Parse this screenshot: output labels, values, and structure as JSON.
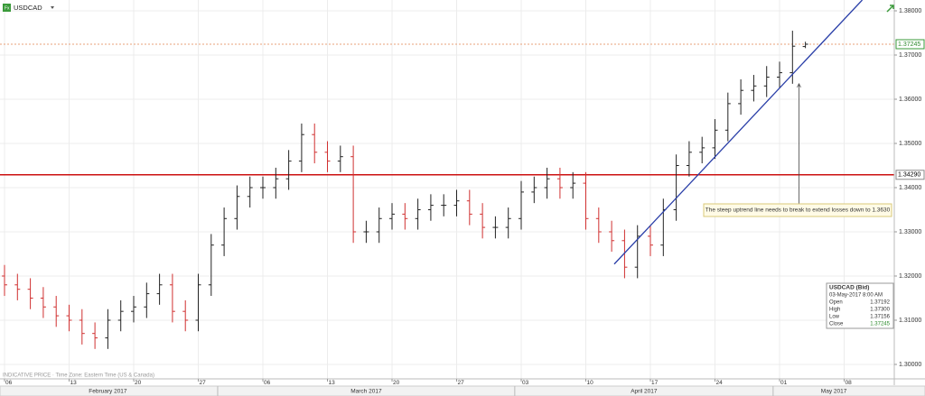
{
  "chart_data": {
    "type": "ohlc",
    "symbol": "USDCAD",
    "footnote": "INDICATIVE PRICE · Time Zone: Eastern Time (US & Canada)",
    "x": [
      0,
      1,
      2,
      3,
      4,
      5,
      6,
      7,
      8,
      9,
      10,
      11,
      12,
      13,
      14,
      15,
      16,
      17,
      18,
      19,
      20,
      21,
      22,
      23,
      24,
      25,
      26,
      27,
      28,
      29,
      30,
      31,
      32,
      33,
      34,
      35,
      36,
      37,
      38,
      39,
      40,
      41,
      42,
      43,
      44,
      45,
      46,
      47,
      48,
      49,
      50,
      51,
      52,
      53,
      54,
      55,
      56,
      57,
      58,
      59,
      60,
      61,
      62
    ],
    "open": [
      1.32,
      1.318,
      1.317,
      1.315,
      1.313,
      1.311,
      1.31,
      1.307,
      1.306,
      1.31,
      1.312,
      1.313,
      1.316,
      1.318,
      1.312,
      1.31,
      1.318,
      1.327,
      1.333,
      1.338,
      1.34,
      1.34,
      1.342,
      1.346,
      1.352,
      1.348,
      1.346,
      1.347,
      1.33,
      1.33,
      1.333,
      1.334,
      1.333,
      1.335,
      1.336,
      1.336,
      1.337,
      1.334,
      1.331,
      1.331,
      1.333,
      1.339,
      1.34,
      1.342,
      1.34,
      1.341,
      1.333,
      1.33,
      1.328,
      1.322,
      1.329,
      1.327,
      1.335,
      1.345,
      1.348,
      1.349,
      1.353,
      1.359,
      1.362,
      1.363,
      1.365,
      1.366,
      1.37192
    ],
    "high": [
      1.3225,
      1.3205,
      1.3195,
      1.3175,
      1.3155,
      1.3135,
      1.3125,
      1.3095,
      1.3125,
      1.3145,
      1.3155,
      1.3185,
      1.3205,
      1.3205,
      1.3145,
      1.3205,
      1.3295,
      1.3355,
      1.3405,
      1.3425,
      1.3425,
      1.3445,
      1.3485,
      1.3545,
      1.3545,
      1.3505,
      1.3495,
      1.3495,
      1.3325,
      1.3355,
      1.3365,
      1.3365,
      1.3375,
      1.3385,
      1.3385,
      1.3395,
      1.3395,
      1.3365,
      1.3335,
      1.3355,
      1.3415,
      1.3425,
      1.3445,
      1.3445,
      1.3435,
      1.3435,
      1.3355,
      1.3325,
      1.3305,
      1.3315,
      1.3315,
      1.3375,
      1.3475,
      1.3505,
      1.3515,
      1.3555,
      1.3615,
      1.3645,
      1.3655,
      1.3675,
      1.3685,
      1.3755,
      1.373
    ],
    "low": [
      1.3155,
      1.3145,
      1.3125,
      1.3105,
      1.3085,
      1.3075,
      1.3045,
      1.3035,
      1.3035,
      1.3075,
      1.3095,
      1.3105,
      1.3135,
      1.3095,
      1.3075,
      1.3075,
      1.3155,
      1.3245,
      1.3305,
      1.3355,
      1.3375,
      1.3375,
      1.3395,
      1.3435,
      1.3455,
      1.3435,
      1.3435,
      1.3275,
      1.3275,
      1.3275,
      1.3305,
      1.3305,
      1.3305,
      1.3325,
      1.3335,
      1.3335,
      1.3315,
      1.3285,
      1.3285,
      1.3285,
      1.3305,
      1.3365,
      1.3375,
      1.3375,
      1.3375,
      1.3305,
      1.3275,
      1.3255,
      1.3195,
      1.3195,
      1.3245,
      1.3245,
      1.3325,
      1.3425,
      1.3455,
      1.3465,
      1.3505,
      1.3565,
      1.3595,
      1.3605,
      1.3625,
      1.3635,
      1.37156
    ],
    "close": [
      1.318,
      1.317,
      1.315,
      1.313,
      1.311,
      1.31,
      1.307,
      1.306,
      1.31,
      1.312,
      1.313,
      1.316,
      1.318,
      1.312,
      1.31,
      1.318,
      1.327,
      1.333,
      1.338,
      1.34,
      1.34,
      1.342,
      1.346,
      1.352,
      1.348,
      1.346,
      1.347,
      1.33,
      1.33,
      1.333,
      1.334,
      1.333,
      1.335,
      1.336,
      1.336,
      1.337,
      1.334,
      1.331,
      1.331,
      1.333,
      1.339,
      1.34,
      1.342,
      1.34,
      1.341,
      1.333,
      1.33,
      1.328,
      1.322,
      1.329,
      1.327,
      1.335,
      1.345,
      1.348,
      1.349,
      1.353,
      1.359,
      1.362,
      1.363,
      1.365,
      1.366,
      1.372,
      1.37245
    ],
    "up_color": "#222222",
    "down_color": "#d03030",
    "xlim": [
      -0.35,
      68.88
    ],
    "ylim": [
      1.29673,
      1.38245
    ],
    "xticks": [
      {
        "value": 0,
        "label": "06"
      },
      {
        "value": 5,
        "label": "13"
      },
      {
        "value": 10,
        "label": "20"
      },
      {
        "value": 15,
        "label": "27"
      },
      {
        "value": 20,
        "label": "06"
      },
      {
        "value": 25,
        "label": "13"
      },
      {
        "value": 30,
        "label": "20"
      },
      {
        "value": 35,
        "label": "27"
      },
      {
        "value": 40,
        "label": "03"
      },
      {
        "value": 45,
        "label": "10"
      },
      {
        "value": 50,
        "label": "17"
      },
      {
        "value": 55,
        "label": "24"
      },
      {
        "value": 60,
        "label": "01"
      },
      {
        "value": 65,
        "label": "08"
      }
    ],
    "x2ticks": [
      {
        "value": 8,
        "label": "February 2017"
      },
      {
        "value": 28,
        "label": "March 2017"
      },
      {
        "value": 49.5,
        "label": "April 2017"
      },
      {
        "value": 64.2,
        "label": "May 2017"
      }
    ],
    "x2_dividers": [
      16.5,
      39.5,
      59.5
    ],
    "yticks": [
      {
        "value": 1.38,
        "label": "1.38000"
      },
      {
        "value": 1.37,
        "label": "1.37000"
      },
      {
        "value": 1.36,
        "label": "1.36000"
      },
      {
        "value": 1.35,
        "label": "1.35000"
      },
      {
        "value": 1.34,
        "label": "1.34000"
      },
      {
        "value": 1.33,
        "label": "1.33000"
      },
      {
        "value": 1.32,
        "label": "1.32000"
      },
      {
        "value": 1.31,
        "label": "1.31000"
      },
      {
        "value": 1.3,
        "label": "1.30000"
      }
    ],
    "grid": true,
    "hlines": [
      {
        "value": 1.3429,
        "label": "1.34290",
        "color": "#cc1111",
        "label_color": "#000000",
        "dashed": false
      },
      {
        "value": 1.37245,
        "label": "1.37245",
        "color": "#e8a07a",
        "label_color": "#2e8b2e",
        "dashed": true
      }
    ],
    "trendline": {
      "x": [
        47.2,
        66.4
      ],
      "y": [
        1.3227,
        1.38245
      ],
      "color": "#2a3fa8"
    },
    "annotation": {
      "text": "The steep uptrend line needs to break to extend losses down to 1.3630",
      "x": 61.5,
      "y": 1.3635
    },
    "info": {
      "title": "USDCAD (Bid)",
      "date": "03-May-2017 8:00 AM",
      "rows": [
        [
          "Open",
          "1.37192"
        ],
        [
          "High",
          "1.37300"
        ],
        [
          "Low",
          "1.37156"
        ],
        [
          "Close",
          "1.37245"
        ]
      ]
    }
  }
}
